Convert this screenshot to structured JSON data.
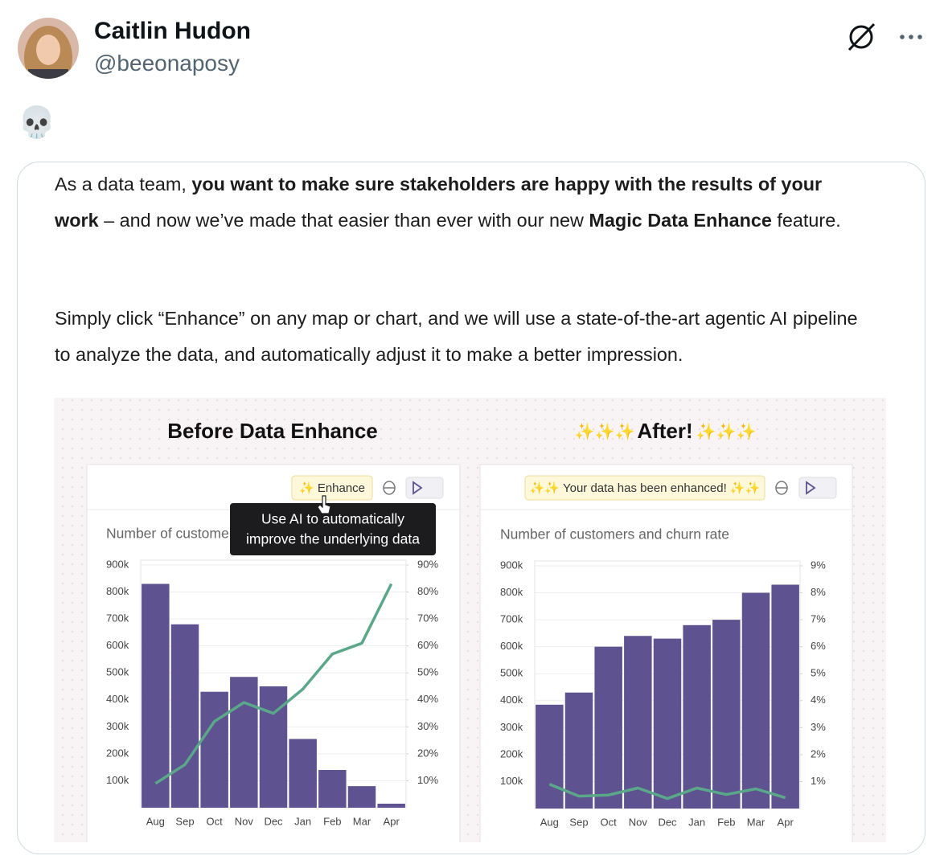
{
  "tweet": {
    "name": "Caitlin Hudon",
    "handle": "@beeonaposy",
    "text": "💀"
  },
  "card": {
    "paragraphs": [
      [
        {
          "text": "As a data team, "
        },
        {
          "text": "you want to make sure stakeholders are happy with the results of your work",
          "bold": true
        },
        {
          "text": " – and now we’ve made that easier than ever with our new "
        },
        {
          "text": "Magic Data Enhance",
          "bold": true
        },
        {
          "text": " feature."
        }
      ],
      [
        {
          "text": "Simply click “Enhance” on any map or chart, and we will use a state-of-the-art agentic AI pipeline to analyze the data, and automatically adjust it to make a better impression."
        }
      ]
    ]
  },
  "ui": {
    "sparkles": "✨✨✨",
    "enhance_button": "✨ Enhance",
    "enhanced_button": "✨✨ Your data has been enhanced! ✨✨",
    "tooltip": [
      "Use AI to automatically",
      "improve the underlying data"
    ]
  },
  "chart_data": [
    {
      "type": "bar-line",
      "title": "Before Data Enhance",
      "subtitle": "Number of customers and churn rate",
      "categories": [
        "Aug",
        "Sep",
        "Oct",
        "Nov",
        "Dec",
        "Jan",
        "Feb",
        "Mar",
        "Apr"
      ],
      "series": [
        {
          "type": "bar",
          "color": "#5e5290",
          "values": [
            830000,
            680000,
            430000,
            485000,
            450000,
            255000,
            140000,
            80000,
            15000
          ]
        },
        {
          "type": "line",
          "axis": "y2",
          "color": "#5aa889",
          "values": [
            9,
            16,
            32,
            39,
            35,
            44,
            57,
            61,
            83
          ]
        }
      ],
      "ylim": [
        0,
        900000
      ],
      "yticks": [
        {
          "value": 100000,
          "label": "100k"
        },
        {
          "value": 200000,
          "label": "200k"
        },
        {
          "value": 300000,
          "label": "300k"
        },
        {
          "value": 400000,
          "label": "400k"
        },
        {
          "value": 500000,
          "label": "500k"
        },
        {
          "value": 600000,
          "label": "600k"
        },
        {
          "value": 700000,
          "label": "700k"
        },
        {
          "value": 800000,
          "label": "800k"
        },
        {
          "value": 900000,
          "label": "900k"
        }
      ],
      "y2lim": [
        0,
        90
      ],
      "y2ticks": [
        {
          "value": 10,
          "label": "10%"
        },
        {
          "value": 20,
          "label": "20%"
        },
        {
          "value": 30,
          "label": "30%"
        },
        {
          "value": 40,
          "label": "40%"
        },
        {
          "value": 50,
          "label": "50%"
        },
        {
          "value": 60,
          "label": "60%"
        },
        {
          "value": 70,
          "label": "70%"
        },
        {
          "value": 80,
          "label": "80%"
        },
        {
          "value": 90,
          "label": "90%"
        }
      ],
      "grid": true
    },
    {
      "type": "bar-line",
      "title": "After!",
      "subtitle": "Number of customers and churn rate",
      "categories": [
        "Aug",
        "Sep",
        "Oct",
        "Nov",
        "Dec",
        "Jan",
        "Feb",
        "Mar",
        "Apr"
      ],
      "series": [
        {
          "type": "bar",
          "color": "#5e5290",
          "values": [
            385000,
            430000,
            600000,
            640000,
            630000,
            680000,
            700000,
            800000,
            830000
          ]
        },
        {
          "type": "line",
          "axis": "y2",
          "color": "#5aa889",
          "values": [
            0.9,
            0.46,
            0.5,
            0.76,
            0.37,
            0.76,
            0.52,
            0.73,
            0.4
          ]
        }
      ],
      "ylim": [
        0,
        900000
      ],
      "yticks": [
        {
          "value": 100000,
          "label": "100k"
        },
        {
          "value": 200000,
          "label": "200k"
        },
        {
          "value": 300000,
          "label": "300k"
        },
        {
          "value": 400000,
          "label": "400k"
        },
        {
          "value": 500000,
          "label": "500k"
        },
        {
          "value": 600000,
          "label": "600k"
        },
        {
          "value": 700000,
          "label": "700k"
        },
        {
          "value": 800000,
          "label": "800k"
        },
        {
          "value": 900000,
          "label": "900k"
        }
      ],
      "y2lim": [
        0,
        9
      ],
      "y2ticks": [
        {
          "value": 1,
          "label": "1%"
        },
        {
          "value": 2,
          "label": "2%"
        },
        {
          "value": 3,
          "label": "3%"
        },
        {
          "value": 4,
          "label": "4%"
        },
        {
          "value": 5,
          "label": "5%"
        },
        {
          "value": 6,
          "label": "6%"
        },
        {
          "value": 7,
          "label": "7%"
        },
        {
          "value": 8,
          "label": "8%"
        },
        {
          "value": 9,
          "label": "9%"
        }
      ],
      "grid": true
    }
  ]
}
